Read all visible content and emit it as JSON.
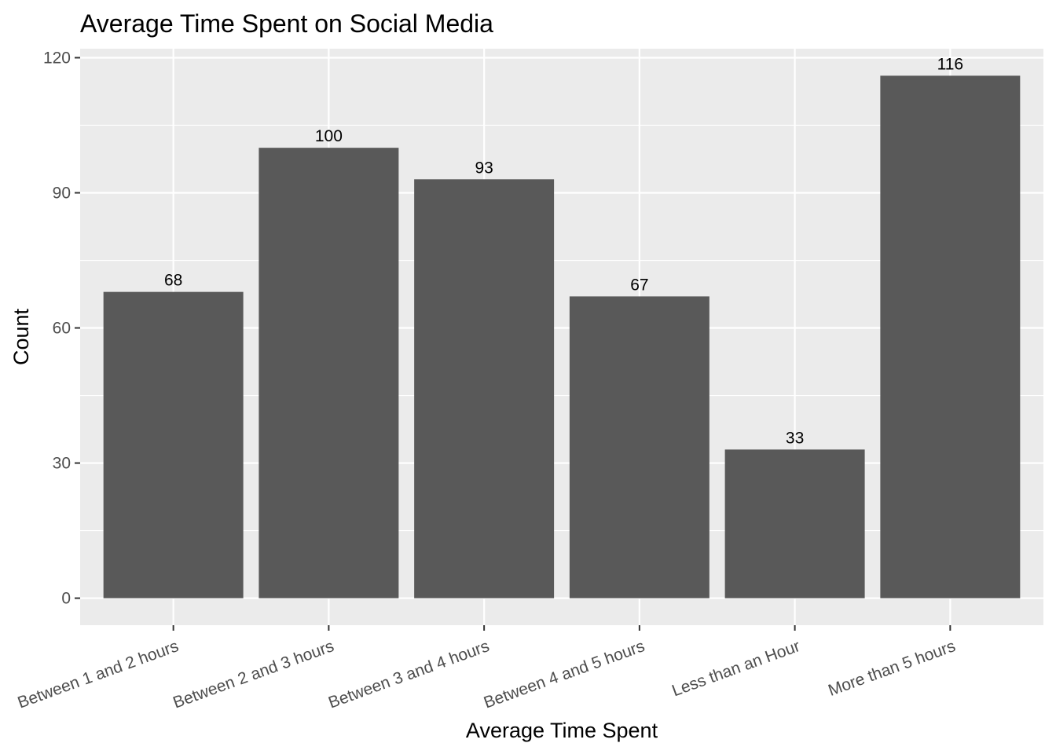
{
  "chart_data": {
    "type": "bar",
    "title": "Average Time Spent on Social Media",
    "xlabel": "Average Time Spent",
    "ylabel": "Count",
    "categories": [
      "Between 1 and 2 hours",
      "Between 2 and 3 hours",
      "Between 3 and 4 hours",
      "Between 4 and 5 hours",
      "Less than an Hour",
      "More than 5 hours"
    ],
    "values": [
      68,
      100,
      93,
      67,
      33,
      116
    ],
    "data_labels": [
      "68",
      "100",
      "93",
      "67",
      "33",
      "116"
    ],
    "ylim": [
      -6,
      122
    ],
    "yticks": [
      0,
      30,
      60,
      90,
      120
    ],
    "ytick_labels": [
      "0",
      "30",
      "60",
      "90",
      "120"
    ],
    "grid": true,
    "legend": "none",
    "colors": {
      "bar": "#595959",
      "panel_background": "#ebebeb",
      "grid": "#ffffff"
    }
  }
}
